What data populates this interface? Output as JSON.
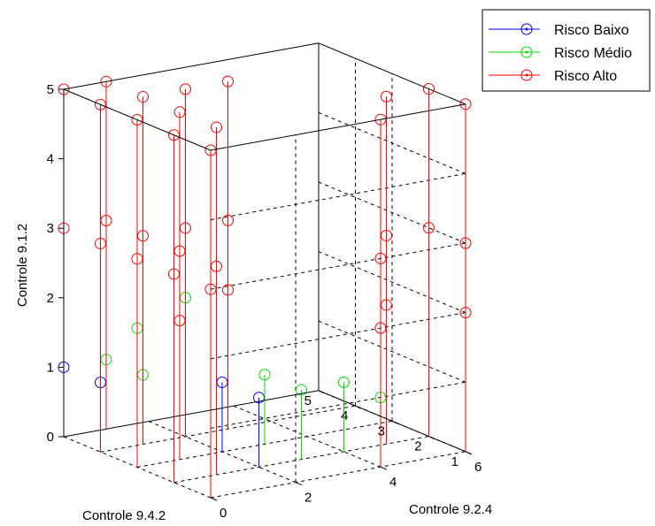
{
  "chart_data": {
    "type": "scatter",
    "subtype": "3d-stem",
    "xlabel": "Controle 9.2.4",
    "ylabel": "Controle 9.4.2",
    "zlabel": "Controle 9.1.2",
    "xlim": [
      0,
      6
    ],
    "ylim": [
      1,
      5
    ],
    "zlim": [
      0,
      5
    ],
    "xticks": [
      "0",
      "2",
      "4",
      "6"
    ],
    "yticks": [
      "1",
      "2",
      "3",
      "4",
      "5"
    ],
    "zticks": [
      "0",
      "1",
      "2",
      "3",
      "4",
      "5"
    ],
    "grid": true,
    "legend_position": "top-right",
    "series": [
      {
        "name": "Risco Baixo",
        "color": "#0000ff",
        "points": [
          [
            0,
            5,
            1
          ],
          [
            0,
            4,
            1
          ],
          [
            2,
            3,
            1
          ],
          [
            2,
            2,
            1
          ]
        ]
      },
      {
        "name": "Risco Médio",
        "color": "#00dd00",
        "points": [
          [
            1,
            5,
            1
          ],
          [
            2,
            4,
            2
          ],
          [
            1,
            4,
            1
          ],
          [
            0,
            3,
            2
          ],
          [
            3,
            3,
            1
          ],
          [
            3,
            2,
            1
          ],
          [
            4,
            2,
            1
          ],
          [
            4,
            1,
            1
          ]
        ]
      },
      {
        "name": "Risco Alto",
        "color": "#ff0000",
        "points": [
          [
            0,
            5,
            5
          ],
          [
            1,
            5,
            5
          ],
          [
            0,
            5,
            3
          ],
          [
            1,
            5,
            3
          ],
          [
            0,
            4,
            5
          ],
          [
            0,
            4,
            3
          ],
          [
            2,
            4,
            5
          ],
          [
            2,
            4,
            3
          ],
          [
            3,
            4,
            5
          ],
          [
            3,
            4,
            3
          ],
          [
            3,
            4,
            2
          ],
          [
            1,
            4,
            5
          ],
          [
            1,
            4,
            3
          ],
          [
            0,
            3,
            5
          ],
          [
            0,
            3,
            3
          ],
          [
            1,
            3,
            5
          ],
          [
            1,
            3,
            3
          ],
          [
            1,
            3,
            2
          ],
          [
            0,
            2,
            5
          ],
          [
            0,
            2,
            3
          ],
          [
            1,
            2,
            5
          ],
          [
            1,
            2,
            3
          ],
          [
            0,
            1,
            5
          ],
          [
            0,
            1,
            3
          ],
          [
            5,
            2,
            5
          ],
          [
            5,
            2,
            3
          ],
          [
            5,
            2,
            2
          ],
          [
            6,
            2,
            5
          ],
          [
            6,
            2,
            3
          ],
          [
            4,
            1,
            5
          ],
          [
            4,
            1,
            3
          ],
          [
            4,
            1,
            2
          ],
          [
            6,
            1,
            5
          ],
          [
            6,
            1,
            3
          ],
          [
            6,
            1,
            2
          ]
        ]
      }
    ]
  }
}
